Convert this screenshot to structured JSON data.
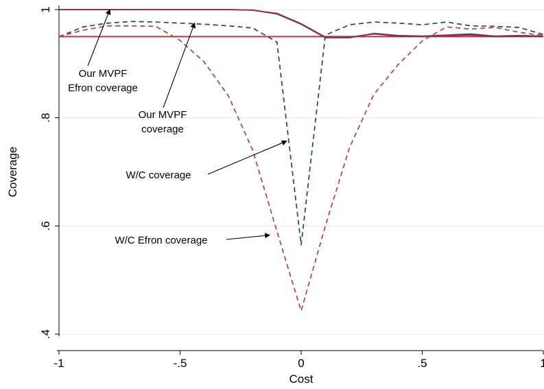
{
  "chart_data": {
    "type": "line",
    "xlabel": "Cost",
    "ylabel": "Coverage",
    "xlim": [
      -1,
      1
    ],
    "ylim": [
      0.4,
      1.0
    ],
    "x_ticks": [
      -1,
      -0.5,
      0,
      0.5,
      1
    ],
    "x_tick_labels": [
      "-1",
      "-.5",
      "0",
      ".5",
      "1"
    ],
    "y_ticks": [
      0.4,
      0.6,
      0.8,
      1.0
    ],
    "y_tick_labels": [
      ".4",
      ".6",
      ".8",
      "1"
    ],
    "grid": true,
    "reference_line": {
      "y": 0.95,
      "color": "#c0304a"
    },
    "series": [
      {
        "color": "#2f4a70",
        "dash": "solid",
        "x": [
          -1,
          -0.9,
          -0.8,
          -0.7,
          -0.6,
          -0.5,
          -0.4,
          -0.3,
          -0.2,
          -0.1,
          0,
          0.1,
          0.2,
          0.3,
          0.4,
          0.5,
          0.6,
          0.7,
          0.8,
          0.9,
          1
        ],
        "y": [
          1.0,
          1.0,
          1.0,
          1.0,
          1.0,
          1.0,
          1.0,
          1.0,
          0.999,
          0.992,
          0.973,
          0.948,
          0.948,
          0.956,
          0.952,
          0.951,
          0.953,
          0.955,
          0.951,
          0.952,
          0.951
        ]
      },
      {
        "color": "#a02a40",
        "dash": "solid",
        "x": [
          -1,
          -0.9,
          -0.8,
          -0.7,
          -0.6,
          -0.5,
          -0.4,
          -0.3,
          -0.2,
          -0.1,
          0,
          0.1,
          0.2,
          0.3,
          0.4,
          0.5,
          0.6,
          0.7,
          0.8,
          0.9,
          1
        ],
        "y": [
          1.0,
          1.0,
          1.0,
          1.0,
          1.0,
          1.0,
          1.0,
          1.0,
          0.999,
          0.993,
          0.974,
          0.949,
          0.949,
          0.955,
          0.951,
          0.95,
          0.952,
          0.953,
          0.95,
          0.951,
          0.95
        ]
      },
      {
        "color": "#2f4a70",
        "dash": "dashed",
        "x": [
          -1,
          -0.9,
          -0.8,
          -0.7,
          -0.6,
          -0.5,
          -0.4,
          -0.3,
          -0.2,
          -0.1,
          0,
          0.1,
          0.2,
          0.3,
          0.4,
          0.5,
          0.6,
          0.7,
          0.8,
          0.9,
          1
        ],
        "y": [
          0.95,
          0.968,
          0.975,
          0.978,
          0.977,
          0.975,
          0.973,
          0.97,
          0.966,
          0.94,
          0.565,
          0.953,
          0.972,
          0.977,
          0.975,
          0.972,
          0.977,
          0.97,
          0.969,
          0.967,
          0.954
        ]
      },
      {
        "color": "#b04a4a",
        "dash": "dashed",
        "x": [
          -1,
          -0.9,
          -0.8,
          -0.7,
          -0.6,
          -0.5,
          -0.4,
          -0.3,
          -0.2,
          -0.1,
          0,
          0.1,
          0.2,
          0.3,
          0.4,
          0.5,
          0.6,
          0.7,
          0.8,
          0.9,
          1
        ],
        "y": [
          0.95,
          0.962,
          0.97,
          0.97,
          0.969,
          0.943,
          0.903,
          0.84,
          0.74,
          0.59,
          0.443,
          0.6,
          0.745,
          0.843,
          0.898,
          0.942,
          0.968,
          0.964,
          0.967,
          0.958,
          0.952
        ]
      }
    ],
    "annotations": [
      {
        "lines": [
          "Our MVPF",
          "Efron coverage"
        ],
        "arrow_to": {
          "x": -0.79,
          "y": 1.0
        }
      },
      {
        "lines": [
          "Our MVPF",
          "coverage"
        ],
        "arrow_to": {
          "x": -0.44,
          "y": 0.975
        }
      },
      {
        "lines": [
          "W/C coverage"
        ],
        "arrow_to": {
          "x": -0.06,
          "y": 0.757
        }
      },
      {
        "lines": [
          "W/C Efron coverage"
        ],
        "arrow_to": {
          "x": -0.13,
          "y": 0.583
        }
      }
    ]
  }
}
